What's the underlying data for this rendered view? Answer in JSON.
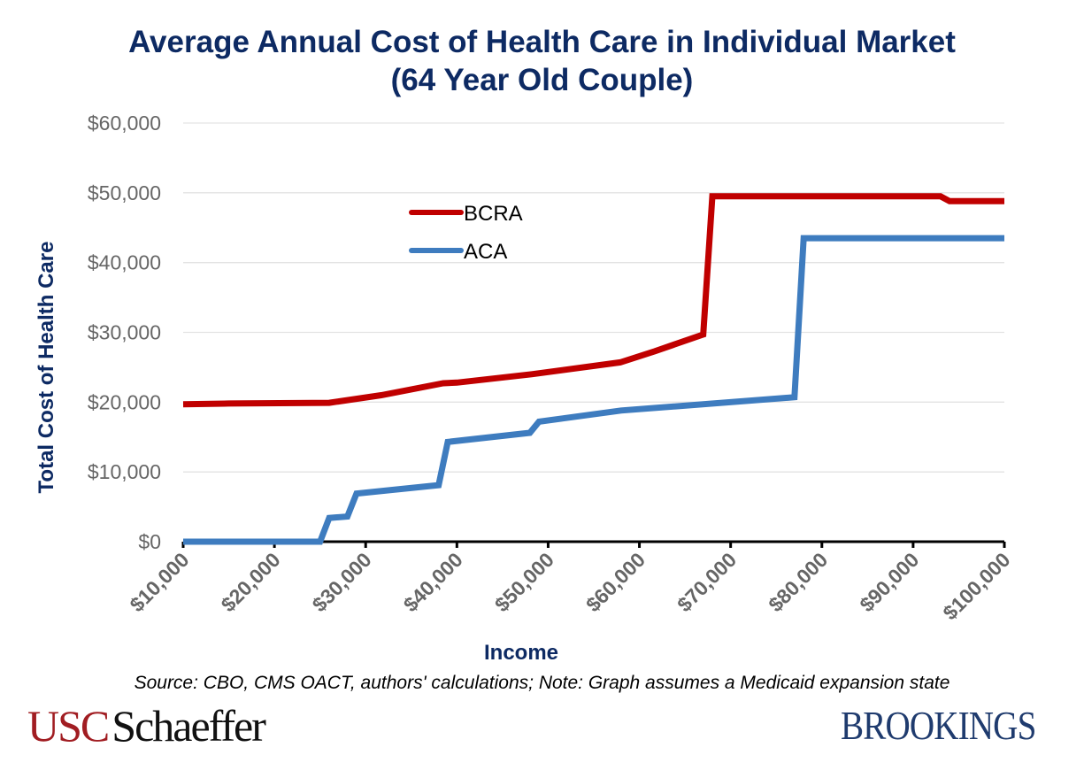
{
  "chart_data": {
    "type": "line",
    "title": "Average Annual Cost of Health Care in Individual Market",
    "subtitle": "(64 Year Old Couple)",
    "xlabel": "Income",
    "ylabel": "Total Cost of Health Care",
    "xlim": [
      10000,
      100000
    ],
    "ylim": [
      0,
      60000
    ],
    "grid": true,
    "legend_position": "upper-center",
    "x_tick_labels": [
      "$10,000",
      "$20,000",
      "$30,000",
      "$40,000",
      "$50,000",
      "$60,000",
      "$70,000",
      "$80,000",
      "$90,000",
      "$100,000"
    ],
    "x_tick_values": [
      10000,
      20000,
      30000,
      40000,
      50000,
      60000,
      70000,
      80000,
      90000,
      100000
    ],
    "y_tick_labels": [
      "$0",
      "$10,000",
      "$20,000",
      "$30,000",
      "$40,000",
      "$50,000",
      "$60,000"
    ],
    "y_tick_values": [
      0,
      10000,
      20000,
      30000,
      40000,
      50000,
      60000
    ],
    "series": [
      {
        "name": "BCRA",
        "color": "#c00000",
        "points": [
          [
            10000,
            19700
          ],
          [
            15000,
            19800
          ],
          [
            26000,
            19900
          ],
          [
            31700,
            21000
          ],
          [
            38500,
            22700
          ],
          [
            40000,
            22800
          ],
          [
            48200,
            24000
          ],
          [
            57900,
            25700
          ],
          [
            61700,
            27300
          ],
          [
            67000,
            29700
          ],
          [
            68000,
            49500
          ],
          [
            93000,
            49500
          ],
          [
            94000,
            48800
          ],
          [
            100000,
            48800
          ]
        ]
      },
      {
        "name": "ACA",
        "color": "#3e7cbf",
        "points": [
          [
            10000,
            0
          ],
          [
            25000,
            0
          ],
          [
            26000,
            3400
          ],
          [
            28000,
            3600
          ],
          [
            29000,
            6900
          ],
          [
            38000,
            8100
          ],
          [
            39000,
            14300
          ],
          [
            48000,
            15600
          ],
          [
            49000,
            17200
          ],
          [
            58000,
            18800
          ],
          [
            77000,
            20700
          ],
          [
            78000,
            43500
          ],
          [
            100000,
            43500
          ]
        ]
      }
    ]
  },
  "footer": {
    "source_note": "Source: CBO, CMS OACT, authors' calculations; Note: Graph assumes a Medicaid expansion state",
    "logo_left_part1": "USC",
    "logo_left_part2": "Schaeffer",
    "logo_right": "BROOKINGS"
  },
  "colors": {
    "title": "#0d2a63",
    "bcra": "#c00000",
    "aca": "#3e7cbf",
    "tick_label": "#666666",
    "grid": "#e3e3e3"
  }
}
